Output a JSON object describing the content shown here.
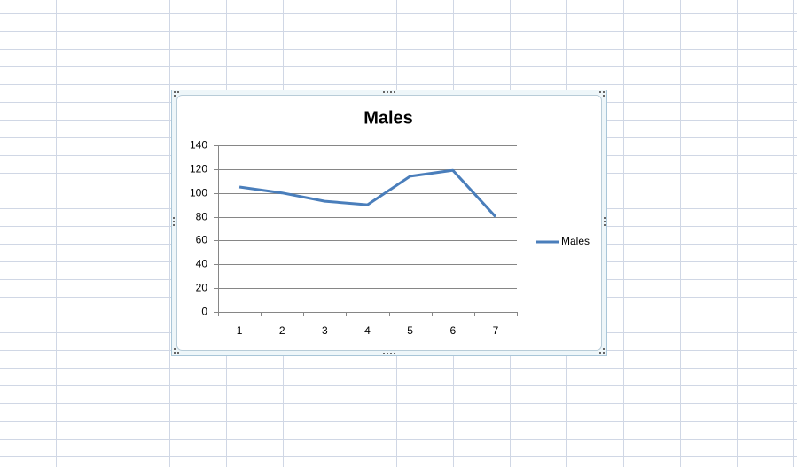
{
  "chart_data": {
    "type": "line",
    "title": "Males",
    "categories": [
      "1",
      "2",
      "3",
      "4",
      "5",
      "6",
      "7"
    ],
    "series": [
      {
        "name": "Males",
        "color": "#4a7ebb",
        "values": [
          105,
          100,
          93,
          90,
          114,
          119,
          80
        ]
      }
    ],
    "ylim": [
      0,
      140
    ],
    "yticks": [
      0,
      20,
      40,
      60,
      80,
      100,
      120,
      140
    ],
    "grid": true,
    "legend": "right"
  }
}
